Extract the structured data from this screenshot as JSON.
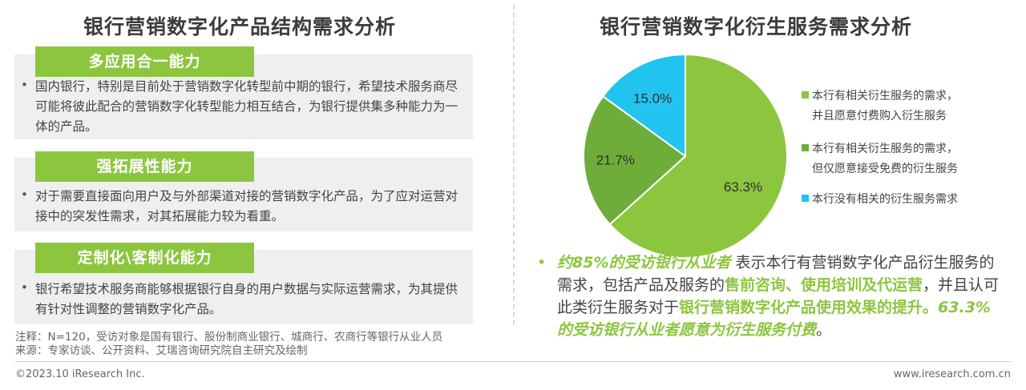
{
  "left": {
    "title": "银行营销数字化产品结构需求分析",
    "sections": [
      {
        "heading": "多应用合一能力",
        "text": "国内银行，特别是目前处于营销数字化转型前中期的银行，希望技术服务商尽可能将彼此配合的营销数字化转型能力相互结合，为银行提供集多种能力为一体的产品。"
      },
      {
        "heading": "强拓展性能力",
        "text": "对于需要直接面向用户及与外部渠道对接的营销数字化产品，为了应对运营对接中的突发性需求，对其拓展能力较为看重。"
      },
      {
        "heading": "定制化\\客制化能力",
        "text": "银行希望技术服务商能够根据银行自身的用户数据与实际运营需求，为其提供有针对性调整的营销数字化产品。"
      }
    ],
    "bullet": "•",
    "note": "注释：N=120，受访对象是国有银行、股份制商业银行、城商行、农商行等银行从业人员",
    "source": "来源：专家访谈、公开资料、艾瑞咨询研究院自主研究及绘制"
  },
  "right": {
    "title": "银行营销数字化衍生服务需求分析",
    "summary": {
      "bullet": "•",
      "p1": "约85%的受访银行从业者",
      "p2": " 表示本行有营销数字化产品衍生服务的需求，包括产品及服务的",
      "p3": "售前咨询、使用培训及代运营",
      "p4": "，并且认可此类衍生服务对于",
      "p5": "银行营销数字化产品使用效果的提升。",
      "p6": "63.3%的受访银行从业者愿意为衍生服务付费",
      "p7": "。"
    }
  },
  "chart_data": {
    "type": "pie",
    "series": [
      {
        "name": "本行有相关衍生服务的需求，\n并且愿意付费购入衍生服务",
        "label": "63.3%",
        "value": 63.3,
        "color": "#8cc63f"
      },
      {
        "name": "本行有相关衍生服务的需求，\n但仅愿意接受免费的衍生服务",
        "label": "21.7%",
        "value": 21.7,
        "color": "#6fad3a"
      },
      {
        "name": "本行没有相关的衍生服务需求",
        "label": "15.0%",
        "value": 15.0,
        "color": "#21c4ef"
      }
    ],
    "legend_position": "right"
  },
  "footer": {
    "copyright": "©2023.10 iResearch Inc.",
    "website": "www.iresearch.com.cn"
  }
}
